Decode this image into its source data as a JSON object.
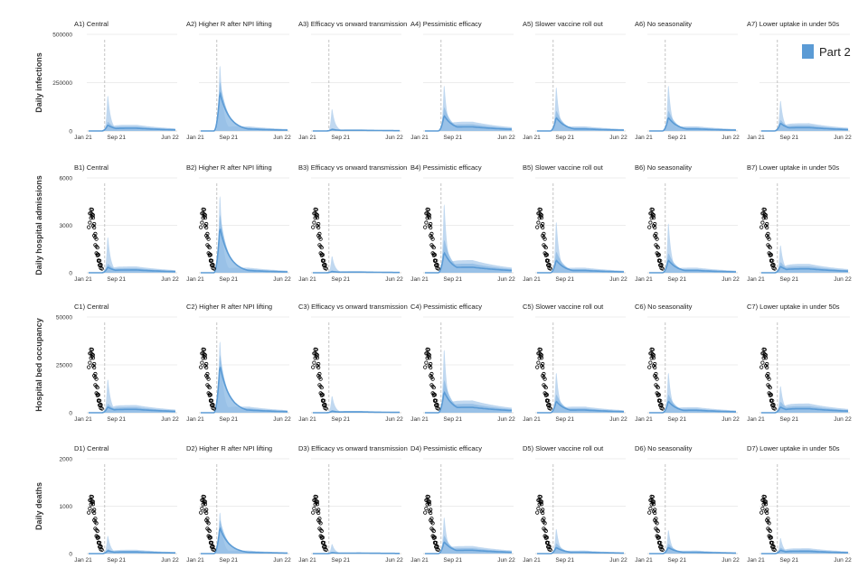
{
  "legend": {
    "label": "Part 2",
    "color": "#5b9bd5",
    "position": "top-right"
  },
  "colors": {
    "band_light": "#b9d4ee",
    "band_mid": "#8fbbe5",
    "line": "#5b9bd5",
    "observed": "#000000",
    "grid": "#e6e6e6",
    "vline": "#bdbdbd"
  },
  "x_axis": {
    "ticks": [
      "Jan 21",
      "Sep 21",
      "Jun 22"
    ]
  },
  "chart_data": [
    {
      "type": "area",
      "row_label": "Daily infections",
      "ylim": [
        0,
        500000
      ],
      "yticks": [
        "0",
        "250000",
        "500000"
      ],
      "observed": false,
      "panels": [
        {
          "title": "A1) Central",
          "peak_upper": 210000,
          "peak_median": 30000,
          "peak_band": 50000,
          "tail": 20000
        },
        {
          "title": "A2) Higher R after NPI lifting",
          "peak_upper": 390000,
          "peak_median": 200000,
          "peak_band": 270000,
          "tail": 15000
        },
        {
          "title": "A3) Efficacy vs onward transmission",
          "peak_upper": 130000,
          "peak_median": 8000,
          "peak_band": 15000,
          "tail": 5000
        },
        {
          "title": "A4) Pessimistic efficacy",
          "peak_upper": 270000,
          "peak_median": 80000,
          "peak_band": 130000,
          "tail": 30000
        },
        {
          "title": "A5) Slower vaccine roll out",
          "peak_upper": 260000,
          "peak_median": 70000,
          "peak_band": 110000,
          "tail": 15000
        },
        {
          "title": "A6) No seasonality",
          "peak_upper": 270000,
          "peak_median": 70000,
          "peak_band": 110000,
          "tail": 15000
        },
        {
          "title": "A7) Lower uptake in under 50s",
          "peak_upper": 180000,
          "peak_median": 40000,
          "peak_band": 60000,
          "tail": 25000
        }
      ]
    },
    {
      "type": "area",
      "row_label": "Daily hospital admissions",
      "ylim": [
        0,
        6000
      ],
      "yticks": [
        "0",
        "3000",
        "6000"
      ],
      "observed": true,
      "observed_peak": 4000,
      "panels": [
        {
          "title": "B1) Central",
          "peak_upper": 2600,
          "peak_median": 350,
          "peak_band": 600,
          "tail": 250
        },
        {
          "title": "B2) Higher R after NPI lifting",
          "peak_upper": 5600,
          "peak_median": 2900,
          "peak_band": 3900,
          "tail": 200
        },
        {
          "title": "B3) Efficacy vs onward transmission",
          "peak_upper": 1200,
          "peak_median": 80,
          "peak_band": 150,
          "tail": 60
        },
        {
          "title": "B4) Pessimistic efficacy",
          "peak_upper": 5000,
          "peak_median": 1300,
          "peak_band": 2200,
          "tail": 500
        },
        {
          "title": "B5) Slower vaccine roll out",
          "peak_upper": 3700,
          "peak_median": 800,
          "peak_band": 1400,
          "tail": 200
        },
        {
          "title": "B6) No seasonality",
          "peak_upper": 3600,
          "peak_median": 800,
          "peak_band": 1300,
          "tail": 200
        },
        {
          "title": "B7) Lower uptake in under 50s",
          "peak_upper": 2000,
          "peak_median": 400,
          "peak_band": 700,
          "tail": 350
        }
      ]
    },
    {
      "type": "area",
      "row_label": "Hospital bed occupancy",
      "ylim": [
        0,
        50000
      ],
      "yticks": [
        "0",
        "25000",
        "50000"
      ],
      "observed": true,
      "observed_peak": 33000,
      "panels": [
        {
          "title": "C1) Central",
          "peak_upper": 20000,
          "peak_median": 3000,
          "peak_band": 5000,
          "tail": 2500
        },
        {
          "title": "C2) Higher R after NPI lifting",
          "peak_upper": 43000,
          "peak_median": 25000,
          "peak_band": 32000,
          "tail": 2000
        },
        {
          "title": "C3) Efficacy vs onward transmission",
          "peak_upper": 10000,
          "peak_median": 800,
          "peak_band": 1500,
          "tail": 600
        },
        {
          "title": "C4) Pessimistic efficacy",
          "peak_upper": 38000,
          "peak_median": 11000,
          "peak_band": 18000,
          "tail": 4000
        },
        {
          "title": "C5) Slower vaccine roll out",
          "peak_upper": 24000,
          "peak_median": 6000,
          "peak_band": 10000,
          "tail": 2000
        },
        {
          "title": "C6) No seasonality",
          "peak_upper": 24000,
          "peak_median": 6000,
          "peak_band": 10000,
          "tail": 1800
        },
        {
          "title": "C7) Lower uptake in under 50s",
          "peak_upper": 16000,
          "peak_median": 3000,
          "peak_band": 6000,
          "tail": 3000
        }
      ]
    },
    {
      "type": "area",
      "row_label": "Daily deaths",
      "ylim": [
        0,
        2000
      ],
      "yticks": [
        "0",
        "1000",
        "2000"
      ],
      "observed": true,
      "observed_peak": 1200,
      "panels": [
        {
          "title": "D1) Central",
          "peak_upper": 430,
          "peak_median": 60,
          "peak_band": 100,
          "tail": 50
        },
        {
          "title": "D2) Higher R after NPI lifting",
          "peak_upper": 1000,
          "peak_median": 550,
          "peak_band": 750,
          "tail": 40
        },
        {
          "title": "D3) Efficacy vs onward transmission",
          "peak_upper": 230,
          "peak_median": 20,
          "peak_band": 40,
          "tail": 15
        },
        {
          "title": "D4) Pessimistic efficacy",
          "peak_upper": 880,
          "peak_median": 250,
          "peak_band": 400,
          "tail": 100
        },
        {
          "title": "D5) Slower vaccine roll out",
          "peak_upper": 600,
          "peak_median": 130,
          "peak_band": 230,
          "tail": 40
        },
        {
          "title": "D6) No seasonality",
          "peak_upper": 570,
          "peak_median": 130,
          "peak_band": 220,
          "tail": 40
        },
        {
          "title": "D7) Lower uptake in under 50s",
          "peak_upper": 380,
          "peak_median": 70,
          "peak_band": 130,
          "tail": 70
        }
      ]
    }
  ]
}
